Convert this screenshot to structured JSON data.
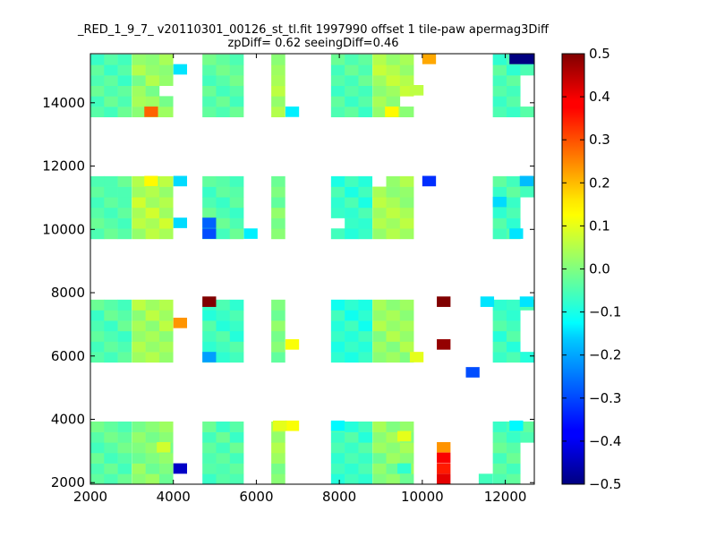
{
  "chart_data": {
    "type": "heatmap",
    "title": "_RED_1_9_7_ v20110301_00126_st_tl.fit 1997990 offset 1 tile-paw apermag3Diff",
    "subtitle": "zpDiff= 0.62 seeingDiff=0.46",
    "xlabel": "",
    "ylabel": "",
    "xlim": [
      2000,
      12700
    ],
    "ylim": [
      1950,
      15550
    ],
    "xticks": [
      2000,
      4000,
      6000,
      8000,
      10000,
      12000
    ],
    "yticks": [
      2000,
      4000,
      6000,
      8000,
      10000,
      12000,
      14000
    ],
    "xtick_labels": [
      "2000",
      "4000",
      "6000",
      "8000",
      "10000",
      "12000"
    ],
    "ytick_labels": [
      "2000",
      "4000",
      "6000",
      "8000",
      "10000",
      "12000",
      "14000"
    ],
    "grid": false,
    "colormap": "jet",
    "clim": [
      -0.5,
      0.5
    ],
    "colorbar_ticks": [
      0.5,
      0.4,
      0.3,
      0.2,
      0.1,
      0.0,
      -0.1,
      -0.2,
      -0.3,
      -0.4,
      -0.5
    ],
    "colorbar_labels": [
      "0.5",
      "0.4",
      "0.3",
      "0.2",
      "0.1",
      "0.0",
      "−0.1",
      "−0.2",
      "−0.3",
      "−0.4",
      "−0.5"
    ],
    "cell_size": 330,
    "x_starts": [
      2000,
      3000,
      4700,
      5700,
      7800,
      8800,
      10700,
      11700
    ],
    "y_starts": [
      1950,
      5800,
      9700,
      13550
    ],
    "row_count": 6,
    "col_count": 3,
    "base_values": [
      [
        [
          -0.03,
          -0.05,
          -0.02,
          -0.06,
          -0.04,
          -0.01
        ],
        [
          0.01,
          0.03,
          -0.02,
          0.0,
          0.02,
          -0.01
        ],
        [
          -0.07,
          -0.04,
          -0.05,
          -0.03,
          -0.06,
          -0.02
        ],
        [
          0.02,
          0.04,
          0.01,
          -0.01,
          0.03,
          0.05
        ],
        [
          -0.09,
          -0.06,
          -0.08,
          -0.05,
          -0.07,
          -0.04
        ],
        [
          0.0,
          0.02,
          -0.02,
          0.03,
          0.01,
          0.04
        ],
        [
          -0.04,
          -0.02,
          -0.06,
          -0.03,
          -0.01,
          -0.05
        ],
        [
          -0.05,
          -0.03,
          -0.06,
          -0.02,
          -0.04,
          -0.07
        ]
      ],
      [
        [
          -0.04,
          -0.06,
          -0.03,
          -0.05,
          -0.07,
          -0.02
        ],
        [
          0.03,
          0.05,
          0.02,
          0.04,
          0.01,
          0.06
        ],
        [
          -0.05,
          -0.08,
          -0.06,
          -0.04,
          -0.09,
          -0.07
        ],
        [
          -0.02,
          0.0,
          -0.03,
          0.01,
          -0.01,
          0.02
        ],
        [
          -0.08,
          -0.1,
          -0.07,
          -0.09,
          -0.06,
          -0.11
        ],
        [
          0.01,
          0.03,
          0.0,
          0.05,
          0.02,
          0.04
        ],
        [
          -0.06,
          -0.04,
          -0.08,
          -0.05,
          -0.03,
          -0.07
        ],
        [
          -0.07,
          -0.05,
          -0.09,
          -0.04,
          -0.06,
          -0.08
        ]
      ],
      [
        [
          -0.05,
          -0.02,
          -0.04,
          -0.06,
          -0.03,
          -0.05
        ],
        [
          0.02,
          0.06,
          0.04,
          0.08,
          0.03,
          0.05
        ],
        [
          -0.04,
          -0.06,
          -0.02,
          -0.05,
          -0.07,
          -0.03
        ],
        [
          0.0,
          -0.02,
          0.01,
          -0.01,
          0.02,
          -0.03
        ],
        [
          -0.06,
          -0.09,
          -0.07,
          -0.08,
          -0.05,
          -0.1
        ],
        [
          0.02,
          0.05,
          0.03,
          0.06,
          0.04,
          0.01
        ],
        [
          -0.08,
          -0.06,
          -0.1,
          -0.07,
          -0.09,
          -0.05
        ],
        [
          -0.06,
          -0.04,
          -0.08,
          -0.05,
          -0.07,
          -0.03
        ]
      ],
      [
        [
          -0.04,
          -0.06,
          -0.02,
          -0.05,
          -0.03,
          -0.07
        ],
        [
          0.01,
          0.04,
          0.03,
          -0.01,
          0.05,
          0.02
        ],
        [
          -0.03,
          -0.05,
          -0.02,
          -0.06,
          -0.04,
          -0.01
        ],
        [
          0.03,
          0.01,
          0.05,
          0.02,
          0.06,
          0.04
        ],
        [
          -0.05,
          -0.03,
          -0.07,
          -0.04,
          -0.06,
          -0.02
        ],
        [
          0.02,
          0.04,
          0.01,
          0.03,
          0.07,
          0.05
        ],
        [
          -0.06,
          -0.04,
          -0.07,
          -0.03,
          -0.05,
          -0.02
        ],
        [
          -0.05,
          -0.07,
          -0.04,
          -0.06,
          -0.03,
          -0.08
        ]
      ]
    ],
    "missing_cells": [
      [
        4,
        0,
        4,
        4
      ],
      [
        4,
        0,
        5,
        4
      ],
      [
        4,
        1,
        4,
        4
      ],
      [
        4,
        1,
        5,
        4
      ],
      [
        4,
        0,
        4,
        5
      ],
      [
        4,
        0,
        5,
        5
      ],
      [
        4,
        1,
        4,
        5
      ],
      [
        4,
        1,
        5,
        5
      ],
      [
        4,
        2,
        4,
        4
      ],
      [
        4,
        2,
        5,
        4
      ],
      [
        4,
        2,
        4,
        5
      ],
      [
        4,
        2,
        5,
        5
      ],
      [
        4,
        3,
        4,
        4
      ],
      [
        4,
        3,
        5,
        4
      ],
      [
        4,
        3,
        4,
        5
      ],
      [
        4,
        3,
        5,
        5
      ],
      [
        3,
        0,
        0,
        0
      ],
      [
        3,
        0,
        1,
        0
      ],
      [
        3,
        0,
        2,
        0
      ],
      [
        3,
        0,
        3,
        0
      ],
      [
        3,
        0,
        4,
        0
      ],
      [
        3,
        0,
        5,
        0
      ],
      [
        3,
        2,
        0,
        0
      ],
      [
        3,
        2,
        1,
        0
      ],
      [
        3,
        2,
        2,
        0
      ],
      [
        3,
        2,
        3,
        0
      ],
      [
        3,
        2,
        4,
        0
      ],
      [
        3,
        2,
        5,
        0
      ],
      [
        3,
        3,
        0,
        0
      ],
      [
        3,
        3,
        1,
        0
      ],
      [
        3,
        3,
        2,
        0
      ],
      [
        3,
        3,
        3,
        0
      ],
      [
        3,
        3,
        4,
        0
      ],
      [
        3,
        3,
        5,
        0
      ],
      [
        3,
        1,
        0,
        0
      ],
      [
        3,
        1,
        1,
        0
      ],
      [
        3,
        1,
        2,
        0
      ],
      [
        3,
        1,
        3,
        0
      ],
      [
        3,
        1,
        4,
        0
      ],
      [
        3,
        1,
        5,
        0
      ],
      [
        3,
        0,
        0,
        1
      ],
      [
        3,
        0,
        1,
        1
      ],
      [
        3,
        0,
        2,
        1
      ],
      [
        3,
        0,
        3,
        1
      ],
      [
        3,
        0,
        4,
        1
      ],
      [
        3,
        0,
        5,
        1
      ],
      [
        3,
        1,
        0,
        1
      ],
      [
        3,
        1,
        1,
        1
      ],
      [
        3,
        1,
        2,
        1
      ],
      [
        3,
        1,
        3,
        1
      ],
      [
        3,
        1,
        4,
        1
      ],
      [
        3,
        1,
        5,
        1
      ],
      [
        3,
        2,
        0,
        1
      ],
      [
        3,
        2,
        1,
        1
      ],
      [
        3,
        2,
        2,
        1
      ],
      [
        3,
        2,
        3,
        1
      ],
      [
        3,
        2,
        4,
        1
      ],
      [
        3,
        2,
        5,
        1
      ],
      [
        3,
        3,
        0,
        1
      ],
      [
        3,
        3,
        1,
        1
      ],
      [
        3,
        3,
        2,
        1
      ],
      [
        3,
        3,
        3,
        1
      ],
      [
        3,
        3,
        4,
        1
      ],
      [
        3,
        3,
        5,
        1
      ],
      [
        7,
        0,
        0,
        2
      ],
      [
        7,
        0,
        1,
        2
      ],
      [
        7,
        0,
        2,
        2
      ],
      [
        7,
        0,
        3,
        2
      ],
      [
        7,
        1,
        1,
        2
      ],
      [
        7,
        1,
        2,
        2
      ],
      [
        7,
        1,
        3,
        2
      ],
      [
        7,
        1,
        4,
        2
      ],
      [
        7,
        3,
        1,
        2
      ],
      [
        7,
        3,
        2,
        2
      ],
      [
        7,
        3,
        3,
        2
      ],
      [
        7,
        2,
        0,
        2
      ],
      [
        7,
        2,
        1,
        2
      ],
      [
        7,
        2,
        2,
        2
      ],
      [
        7,
        2,
        3,
        2
      ],
      [
        1,
        3,
        2,
        2
      ],
      [
        5,
        3,
        1,
        2
      ],
      [
        4,
        2,
        1,
        0
      ],
      [
        5,
        2,
        5,
        0
      ],
      [
        6,
        0,
        0,
        0
      ],
      [
        6,
        0,
        1,
        0
      ],
      [
        6,
        0,
        2,
        0
      ],
      [
        6,
        0,
        3,
        0
      ],
      [
        6,
        0,
        4,
        0
      ],
      [
        6,
        0,
        5,
        0
      ],
      [
        6,
        1,
        0,
        0
      ],
      [
        6,
        1,
        1,
        0
      ],
      [
        6,
        1,
        2,
        0
      ],
      [
        6,
        1,
        3,
        0
      ],
      [
        6,
        1,
        4,
        0
      ],
      [
        6,
        1,
        5,
        0
      ],
      [
        6,
        2,
        0,
        0
      ],
      [
        6,
        2,
        1,
        0
      ],
      [
        6,
        2,
        2,
        0
      ],
      [
        6,
        2,
        3,
        0
      ],
      [
        6,
        2,
        4,
        0
      ],
      [
        6,
        2,
        5,
        0
      ],
      [
        6,
        3,
        0,
        0
      ],
      [
        6,
        3,
        1,
        0
      ],
      [
        6,
        3,
        2,
        0
      ],
      [
        6,
        3,
        3,
        0
      ],
      [
        6,
        3,
        4,
        0
      ],
      [
        6,
        3,
        5,
        0
      ],
      [
        6,
        3,
        0,
        1
      ],
      [
        6,
        3,
        1,
        1
      ],
      [
        6,
        3,
        2,
        1
      ],
      [
        6,
        3,
        3,
        1
      ],
      [
        6,
        3,
        4,
        1
      ],
      [
        6,
        3,
        5,
        1
      ],
      [
        6,
        2,
        0,
        1
      ],
      [
        6,
        2,
        1,
        1
      ],
      [
        6,
        2,
        2,
        1
      ],
      [
        6,
        2,
        3,
        1
      ],
      [
        6,
        2,
        4,
        1
      ],
      [
        6,
        2,
        5,
        1
      ],
      [
        6,
        0,
        0,
        1
      ],
      [
        6,
        0,
        1,
        1
      ],
      [
        6,
        0,
        2,
        1
      ],
      [
        6,
        0,
        3,
        1
      ],
      [
        6,
        0,
        4,
        1
      ],
      [
        6,
        0,
        5,
        1
      ],
      [
        6,
        1,
        0,
        1
      ],
      [
        6,
        1,
        1,
        1
      ],
      [
        6,
        1,
        2,
        1
      ],
      [
        6,
        1,
        3,
        1
      ],
      [
        6,
        1,
        4,
        1
      ],
      [
        6,
        1,
        5,
        1
      ],
      [
        6,
        0,
        5,
        2
      ],
      [
        6,
        0,
        4,
        2
      ],
      [
        6,
        0,
        3,
        2
      ],
      [
        6,
        0,
        2,
        2
      ],
      [
        6,
        0,
        1,
        2
      ],
      [
        6,
        1,
        5,
        2
      ],
      [
        6,
        1,
        4,
        2
      ],
      [
        6,
        1,
        3,
        2
      ],
      [
        6,
        1,
        2,
        2
      ],
      [
        6,
        1,
        1,
        2
      ],
      [
        6,
        1,
        0,
        2
      ],
      [
        6,
        2,
        5,
        2
      ],
      [
        6,
        2,
        4,
        2
      ],
      [
        6,
        2,
        3,
        2
      ],
      [
        6,
        2,
        2,
        2
      ],
      [
        6,
        2,
        1,
        2
      ],
      [
        6,
        2,
        0,
        2
      ],
      [
        6,
        3,
        5,
        2
      ],
      [
        6,
        3,
        4,
        2
      ],
      [
        6,
        3,
        3,
        2
      ],
      [
        6,
        3,
        2,
        2
      ],
      [
        6,
        3,
        1,
        2
      ],
      [
        6,
        3,
        0,
        2
      ]
    ],
    "special_cells": [
      {
        "x": 12100,
        "y": 15220,
        "w": 650,
        "h": 330,
        "value": -0.5
      },
      {
        "x": 10000,
        "y": 15220,
        "w": 330,
        "h": 330,
        "value": 0.21
      },
      {
        "x": 3300,
        "y": 13550,
        "w": 330,
        "h": 330,
        "value": 0.28
      },
      {
        "x": 4000,
        "y": 14890,
        "w": 330,
        "h": 330,
        "value": -0.15
      },
      {
        "x": 6700,
        "y": 13550,
        "w": 330,
        "h": 330,
        "value": -0.14
      },
      {
        "x": 9700,
        "y": 14230,
        "w": 330,
        "h": 330,
        "value": 0.06
      },
      {
        "x": 9100,
        "y": 13550,
        "w": 330,
        "h": 330,
        "value": 0.13
      },
      {
        "x": 3300,
        "y": 11360,
        "w": 330,
        "h": 330,
        "value": 0.13
      },
      {
        "x": 4000,
        "y": 11360,
        "w": 330,
        "h": 330,
        "value": -0.16
      },
      {
        "x": 4000,
        "y": 10040,
        "w": 330,
        "h": 330,
        "value": -0.16
      },
      {
        "x": 4700,
        "y": 10040,
        "w": 330,
        "h": 330,
        "value": -0.28
      },
      {
        "x": 4700,
        "y": 9700,
        "w": 330,
        "h": 330,
        "value": -0.3
      },
      {
        "x": 5700,
        "y": 9700,
        "w": 330,
        "h": 330,
        "value": -0.14
      },
      {
        "x": 10000,
        "y": 11360,
        "w": 330,
        "h": 330,
        "value": -0.33
      },
      {
        "x": 12350,
        "y": 11360,
        "w": 330,
        "h": 330,
        "value": -0.19
      },
      {
        "x": 11700,
        "y": 10700,
        "w": 330,
        "h": 330,
        "value": -0.16
      },
      {
        "x": 12100,
        "y": 9700,
        "w": 330,
        "h": 330,
        "value": -0.15
      },
      {
        "x": 4700,
        "y": 7550,
        "w": 330,
        "h": 330,
        "value": 0.5
      },
      {
        "x": 4000,
        "y": 6880,
        "w": 330,
        "h": 330,
        "value": 0.23
      },
      {
        "x": 4700,
        "y": 5800,
        "w": 330,
        "h": 330,
        "value": -0.22
      },
      {
        "x": 6700,
        "y": 6200,
        "w": 330,
        "h": 330,
        "value": 0.12
      },
      {
        "x": 9700,
        "y": 5800,
        "w": 330,
        "h": 330,
        "value": 0.1
      },
      {
        "x": 10350,
        "y": 7550,
        "w": 330,
        "h": 330,
        "value": 0.5
      },
      {
        "x": 10350,
        "y": 6200,
        "w": 330,
        "h": 330,
        "value": 0.48
      },
      {
        "x": 11050,
        "y": 5320,
        "w": 330,
        "h": 330,
        "value": -0.3
      },
      {
        "x": 11400,
        "y": 7550,
        "w": 330,
        "h": 330,
        "value": -0.15
      },
      {
        "x": 12350,
        "y": 7550,
        "w": 330,
        "h": 330,
        "value": -0.15
      },
      {
        "x": 4000,
        "y": 2280,
        "w": 330,
        "h": 330,
        "value": -0.43
      },
      {
        "x": 7800,
        "y": 3630,
        "w": 330,
        "h": 330,
        "value": -0.13
      },
      {
        "x": 10350,
        "y": 2950,
        "w": 330,
        "h": 330,
        "value": 0.23
      },
      {
        "x": 10350,
        "y": 2620,
        "w": 330,
        "h": 330,
        "value": 0.38
      },
      {
        "x": 10350,
        "y": 2280,
        "w": 330,
        "h": 330,
        "value": 0.35
      },
      {
        "x": 10350,
        "y": 1950,
        "w": 330,
        "h": 330,
        "value": 0.4
      },
      {
        "x": 12100,
        "y": 3630,
        "w": 330,
        "h": 330,
        "value": -0.13
      },
      {
        "x": 6700,
        "y": 3630,
        "w": 330,
        "h": 330,
        "value": 0.12
      },
      {
        "x": 6400,
        "y": 3630,
        "w": 330,
        "h": 330,
        "value": 0.1
      },
      {
        "x": 9400,
        "y": 3300,
        "w": 330,
        "h": 330,
        "value": 0.1
      },
      {
        "x": 9400,
        "y": 2280,
        "w": 330,
        "h": 330,
        "value": -0.08
      },
      {
        "x": 3600,
        "y": 2950,
        "w": 330,
        "h": 330,
        "value": 0.08
      }
    ]
  }
}
